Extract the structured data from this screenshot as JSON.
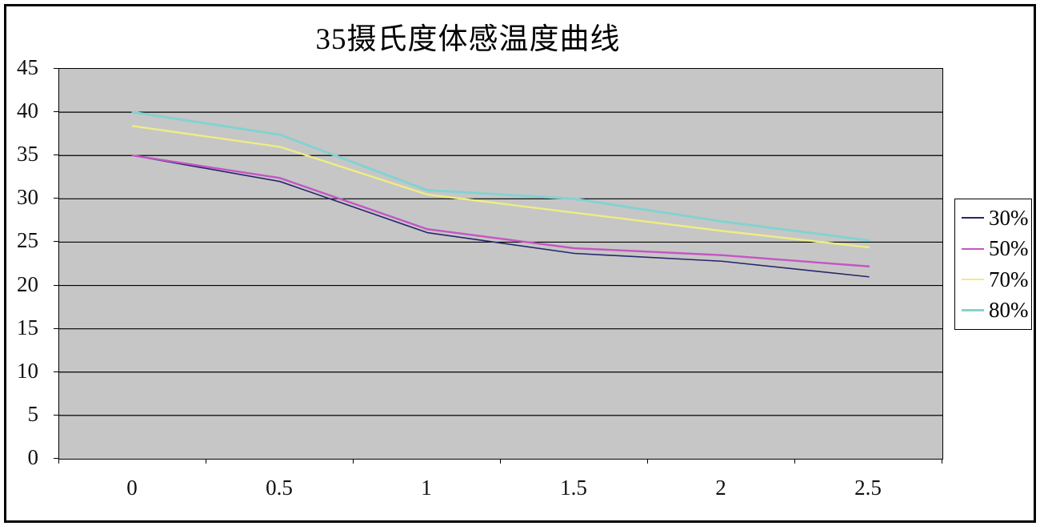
{
  "chart_data": {
    "type": "line",
    "title": "35摄氏度体感温度曲线",
    "xlabel": "",
    "ylabel": "",
    "x": [
      0,
      0.5,
      1,
      1.5,
      2,
      2.5
    ],
    "x_tick_labels": [
      "0",
      "0.5",
      "1",
      "1.5",
      "2",
      "2.5"
    ],
    "y_tick_labels": [
      "45",
      "40",
      "35",
      "30",
      "25",
      "20",
      "15",
      "10",
      "5",
      "0"
    ],
    "ylim": [
      0,
      45
    ],
    "y_tick_step": 5,
    "grid": "horizontal-gridlines",
    "legend_position": "right",
    "series": [
      {
        "name": "30%",
        "color": "#26266b",
        "width": 1.6,
        "values": [
          35,
          32,
          26.1,
          23.7,
          22.8,
          21
        ]
      },
      {
        "name": "50%",
        "color": "#c455c4",
        "width": 2.4,
        "values": [
          35,
          32.4,
          26.5,
          24.3,
          23.5,
          22.2
        ]
      },
      {
        "name": "70%",
        "color": "#eded85",
        "width": 2.4,
        "values": [
          38.4,
          36,
          30.5,
          28.4,
          26.3,
          24.4
        ]
      },
      {
        "name": "80%",
        "color": "#84d2d0",
        "width": 3,
        "values": [
          40,
          37.4,
          31,
          30,
          27.4,
          25.2
        ]
      }
    ],
    "colors": {
      "plot_background": "#c6c6c6",
      "gridline": "#000000",
      "axis_text": "#111111",
      "chart_border": "#000000",
      "legend_background": "#ffffff"
    }
  }
}
